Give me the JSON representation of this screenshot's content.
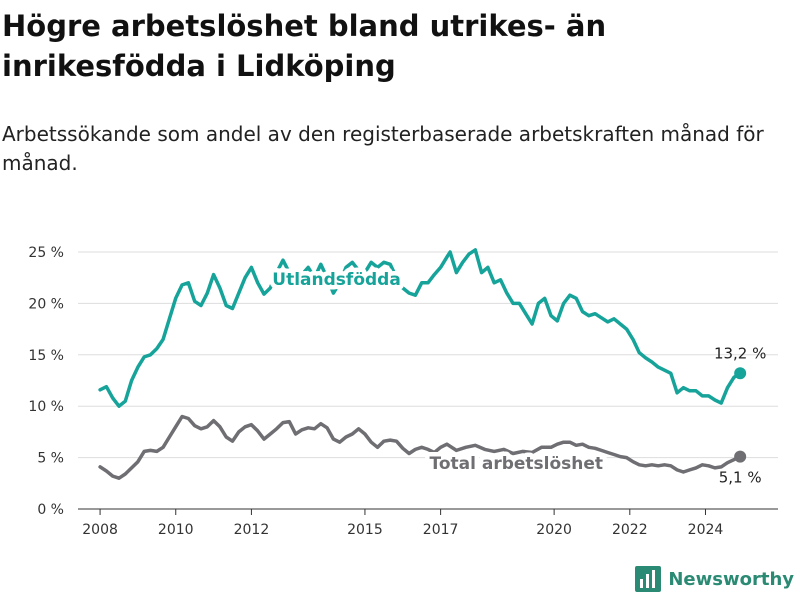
{
  "title": "Högre arbetslöshet bland utrikes- än inrikesfödda i Lidköping",
  "subtitle": "Arbetssökande som andel av den registerbaserade arbetskraften månad för månad.",
  "brand": "Newsworthy",
  "colors": {
    "foreign": "#16a39a",
    "total": "#6e6e73",
    "grid": "#dddddd",
    "brand": "#2a8a73"
  },
  "chart_data": {
    "type": "line",
    "x_ticks": [
      "2008",
      "2010",
      "2012",
      "2015",
      "2017",
      "2020",
      "2022",
      "2024"
    ],
    "y_ticks": [
      "0 %",
      "5 %",
      "10 %",
      "15 %",
      "20 %",
      "25 %"
    ],
    "ylim": [
      0,
      25
    ],
    "xlim": [
      "2007-06",
      "2025-12"
    ],
    "series": [
      {
        "name": "Utlandsfödda",
        "end_label": "13,2 %",
        "points": [
          [
            "2008-01",
            11.6
          ],
          [
            "2008-03",
            11.9
          ],
          [
            "2008-05",
            10.8
          ],
          [
            "2008-07",
            10.0
          ],
          [
            "2008-09",
            10.5
          ],
          [
            "2008-11",
            12.5
          ],
          [
            "2009-01",
            13.8
          ],
          [
            "2009-03",
            14.8
          ],
          [
            "2009-05",
            15.0
          ],
          [
            "2009-07",
            15.6
          ],
          [
            "2009-09",
            16.5
          ],
          [
            "2009-11",
            18.5
          ],
          [
            "2010-01",
            20.5
          ],
          [
            "2010-03",
            21.8
          ],
          [
            "2010-05",
            22.0
          ],
          [
            "2010-07",
            20.2
          ],
          [
            "2010-09",
            19.8
          ],
          [
            "2010-11",
            21.0
          ],
          [
            "2011-01",
            22.8
          ],
          [
            "2011-03",
            21.5
          ],
          [
            "2011-05",
            19.8
          ],
          [
            "2011-07",
            19.5
          ],
          [
            "2011-09",
            21.0
          ],
          [
            "2011-11",
            22.5
          ],
          [
            "2012-01",
            23.5
          ],
          [
            "2012-03",
            22.0
          ],
          [
            "2012-05",
            20.9
          ],
          [
            "2012-07",
            21.5
          ],
          [
            "2012-09",
            23.0
          ],
          [
            "2012-11",
            24.2
          ],
          [
            "2013-01",
            23.0
          ],
          [
            "2013-03",
            22.0
          ],
          [
            "2013-05",
            22.8
          ],
          [
            "2013-07",
            23.5
          ],
          [
            "2013-09",
            22.5
          ],
          [
            "2013-11",
            23.8
          ],
          [
            "2014-01",
            22.5
          ],
          [
            "2014-03",
            21.0
          ],
          [
            "2014-05",
            22.0
          ],
          [
            "2014-07",
            23.5
          ],
          [
            "2014-09",
            24.0
          ],
          [
            "2014-11",
            23.2
          ],
          [
            "2015-01",
            23.0
          ],
          [
            "2015-03",
            24.0
          ],
          [
            "2015-05",
            23.5
          ],
          [
            "2015-07",
            24.0
          ],
          [
            "2015-09",
            23.8
          ],
          [
            "2015-11",
            22.5
          ],
          [
            "2016-01",
            21.5
          ],
          [
            "2016-03",
            21.0
          ],
          [
            "2016-05",
            20.8
          ],
          [
            "2016-07",
            22.0
          ],
          [
            "2016-09",
            22.0
          ],
          [
            "2016-11",
            22.8
          ],
          [
            "2017-01",
            23.5
          ],
          [
            "2017-03",
            24.5
          ],
          [
            "2017-04",
            25.0
          ],
          [
            "2017-06",
            23.0
          ],
          [
            "2017-08",
            24.0
          ],
          [
            "2017-10",
            24.8
          ],
          [
            "2017-12",
            25.2
          ],
          [
            "2018-02",
            23.0
          ],
          [
            "2018-04",
            23.5
          ],
          [
            "2018-06",
            22.0
          ],
          [
            "2018-08",
            22.3
          ],
          [
            "2018-10",
            21.0
          ],
          [
            "2018-12",
            20.0
          ],
          [
            "2019-02",
            20.0
          ],
          [
            "2019-04",
            19.0
          ],
          [
            "2019-06",
            18.0
          ],
          [
            "2019-08",
            20.0
          ],
          [
            "2019-10",
            20.5
          ],
          [
            "2019-12",
            18.8
          ],
          [
            "2020-02",
            18.3
          ],
          [
            "2020-04",
            20.0
          ],
          [
            "2020-06",
            20.8
          ],
          [
            "2020-08",
            20.5
          ],
          [
            "2020-10",
            19.2
          ],
          [
            "2020-12",
            18.8
          ],
          [
            "2021-02",
            19.0
          ],
          [
            "2021-04",
            18.6
          ],
          [
            "2021-06",
            18.2
          ],
          [
            "2021-08",
            18.5
          ],
          [
            "2021-10",
            18.0
          ],
          [
            "2021-12",
            17.5
          ],
          [
            "2022-02",
            16.5
          ],
          [
            "2022-04",
            15.2
          ],
          [
            "2022-06",
            14.7
          ],
          [
            "2022-08",
            14.3
          ],
          [
            "2022-10",
            13.8
          ],
          [
            "2022-12",
            13.5
          ],
          [
            "2023-02",
            13.2
          ],
          [
            "2023-04",
            11.3
          ],
          [
            "2023-06",
            11.8
          ],
          [
            "2023-08",
            11.5
          ],
          [
            "2023-10",
            11.5
          ],
          [
            "2023-12",
            11.0
          ],
          [
            "2024-02",
            11.0
          ],
          [
            "2024-04",
            10.6
          ],
          [
            "2024-06",
            10.3
          ],
          [
            "2024-08",
            11.8
          ],
          [
            "2024-10",
            12.8
          ],
          [
            "2024-12",
            13.2
          ]
        ]
      },
      {
        "name": "Total arbetslöshet",
        "end_label": "5,1 %",
        "points": [
          [
            "2008-01",
            4.1
          ],
          [
            "2008-03",
            3.7
          ],
          [
            "2008-05",
            3.2
          ],
          [
            "2008-07",
            3.0
          ],
          [
            "2008-09",
            3.4
          ],
          [
            "2008-11",
            4.0
          ],
          [
            "2009-01",
            4.6
          ],
          [
            "2009-03",
            5.6
          ],
          [
            "2009-05",
            5.7
          ],
          [
            "2009-07",
            5.6
          ],
          [
            "2009-09",
            6.0
          ],
          [
            "2009-11",
            7.0
          ],
          [
            "2010-01",
            8.0
          ],
          [
            "2010-03",
            9.0
          ],
          [
            "2010-05",
            8.8
          ],
          [
            "2010-07",
            8.1
          ],
          [
            "2010-09",
            7.8
          ],
          [
            "2010-11",
            8.0
          ],
          [
            "2011-01",
            8.6
          ],
          [
            "2011-03",
            8.0
          ],
          [
            "2011-05",
            7.0
          ],
          [
            "2011-07",
            6.6
          ],
          [
            "2011-09",
            7.5
          ],
          [
            "2011-11",
            8.0
          ],
          [
            "2012-01",
            8.2
          ],
          [
            "2012-03",
            7.6
          ],
          [
            "2012-05",
            6.8
          ],
          [
            "2012-07",
            7.3
          ],
          [
            "2012-09",
            7.8
          ],
          [
            "2012-11",
            8.4
          ],
          [
            "2013-01",
            8.5
          ],
          [
            "2013-03",
            7.3
          ],
          [
            "2013-05",
            7.7
          ],
          [
            "2013-07",
            7.9
          ],
          [
            "2013-09",
            7.8
          ],
          [
            "2013-11",
            8.3
          ],
          [
            "2014-01",
            7.9
          ],
          [
            "2014-03",
            6.8
          ],
          [
            "2014-05",
            6.5
          ],
          [
            "2014-07",
            7.0
          ],
          [
            "2014-09",
            7.3
          ],
          [
            "2014-11",
            7.8
          ],
          [
            "2015-01",
            7.3
          ],
          [
            "2015-03",
            6.5
          ],
          [
            "2015-05",
            6.0
          ],
          [
            "2015-07",
            6.6
          ],
          [
            "2015-09",
            6.7
          ],
          [
            "2015-11",
            6.6
          ],
          [
            "2016-01",
            5.9
          ],
          [
            "2016-03",
            5.4
          ],
          [
            "2016-05",
            5.8
          ],
          [
            "2016-07",
            6.0
          ],
          [
            "2016-09",
            5.8
          ],
          [
            "2016-11",
            5.5
          ],
          [
            "2017-01",
            6.0
          ],
          [
            "2017-03",
            6.3
          ],
          [
            "2017-06",
            5.7
          ],
          [
            "2017-09",
            6.0
          ],
          [
            "2017-12",
            6.2
          ],
          [
            "2018-03",
            5.8
          ],
          [
            "2018-06",
            5.6
          ],
          [
            "2018-09",
            5.8
          ],
          [
            "2018-12",
            5.4
          ],
          [
            "2019-03",
            5.6
          ],
          [
            "2019-06",
            5.5
          ],
          [
            "2019-09",
            6.0
          ],
          [
            "2019-12",
            6.0
          ],
          [
            "2020-02",
            6.3
          ],
          [
            "2020-04",
            6.5
          ],
          [
            "2020-06",
            6.5
          ],
          [
            "2020-08",
            6.2
          ],
          [
            "2020-10",
            6.3
          ],
          [
            "2020-12",
            6.0
          ],
          [
            "2021-02",
            5.9
          ],
          [
            "2021-04",
            5.7
          ],
          [
            "2021-06",
            5.5
          ],
          [
            "2021-08",
            5.3
          ],
          [
            "2021-10",
            5.1
          ],
          [
            "2021-12",
            5.0
          ],
          [
            "2022-02",
            4.6
          ],
          [
            "2022-04",
            4.3
          ],
          [
            "2022-06",
            4.2
          ],
          [
            "2022-08",
            4.3
          ],
          [
            "2022-10",
            4.2
          ],
          [
            "2022-12",
            4.3
          ],
          [
            "2023-02",
            4.2
          ],
          [
            "2023-04",
            3.8
          ],
          [
            "2023-06",
            3.6
          ],
          [
            "2023-08",
            3.8
          ],
          [
            "2023-10",
            4.0
          ],
          [
            "2023-12",
            4.3
          ],
          [
            "2024-02",
            4.2
          ],
          [
            "2024-04",
            4.0
          ],
          [
            "2024-06",
            4.1
          ],
          [
            "2024-08",
            4.5
          ],
          [
            "2024-10",
            4.8
          ],
          [
            "2024-12",
            5.1
          ]
        ]
      }
    ]
  }
}
